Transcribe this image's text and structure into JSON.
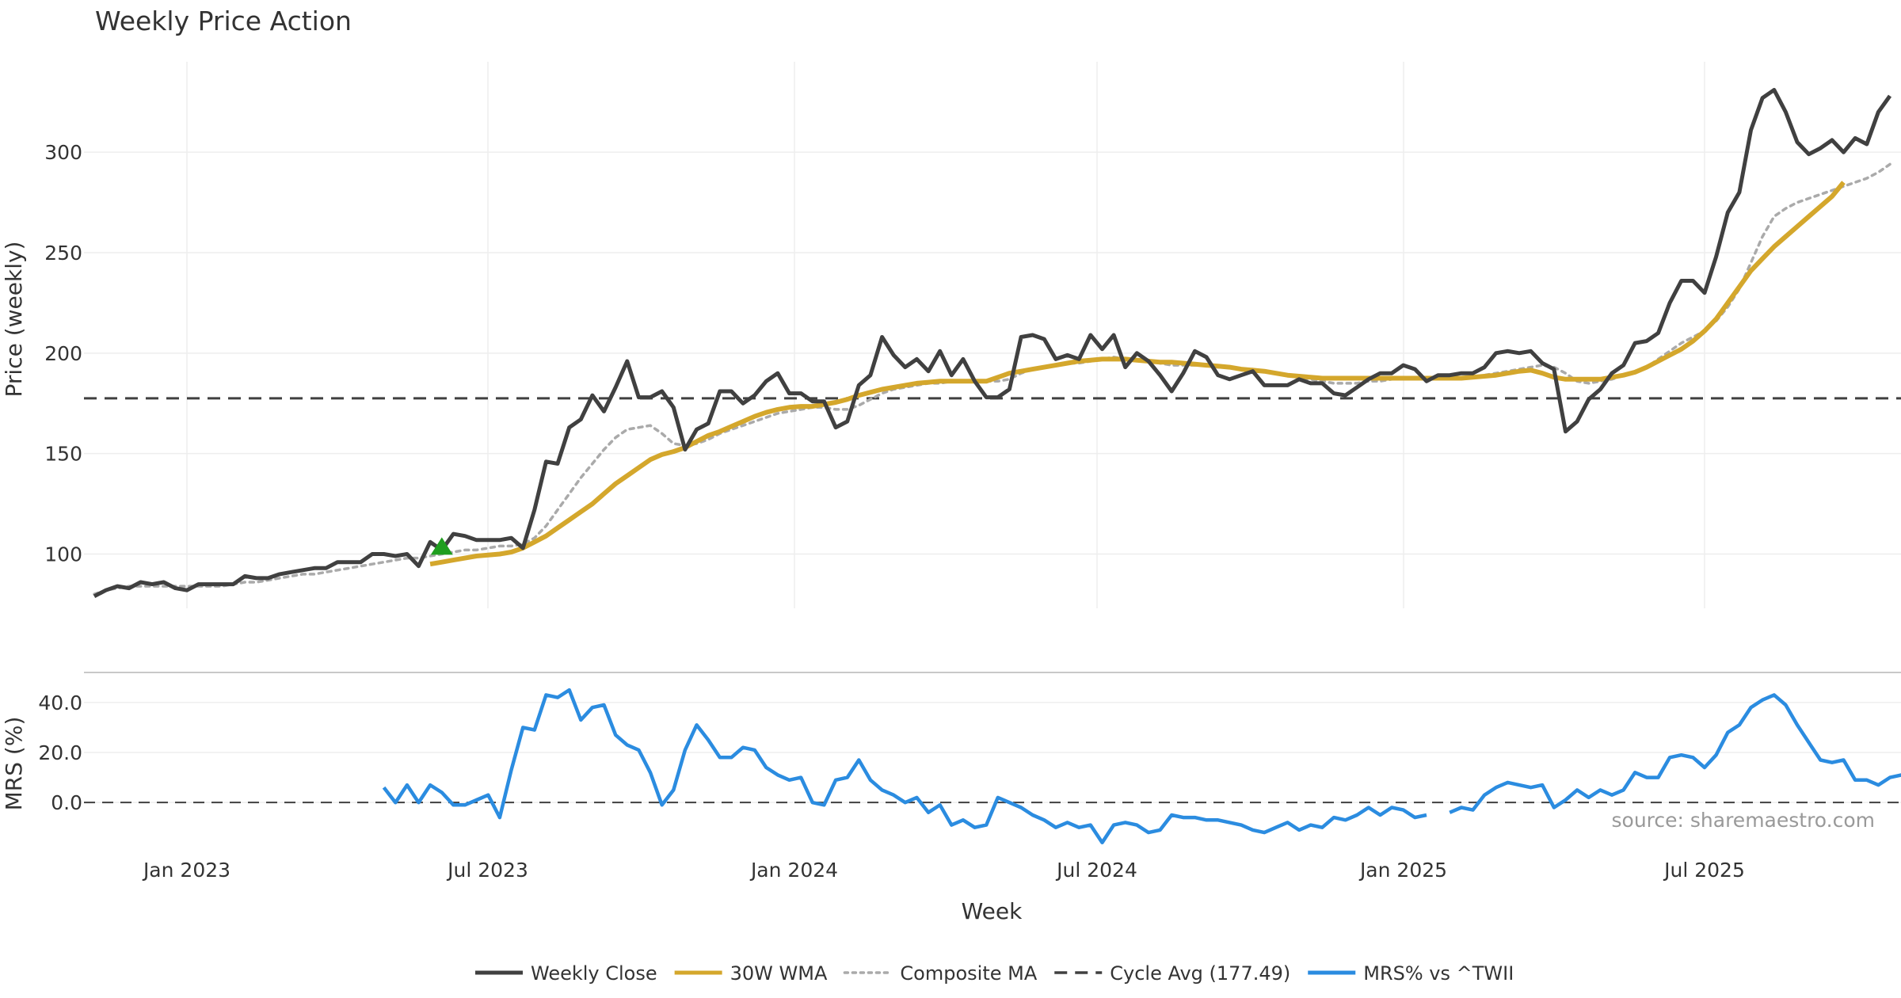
{
  "chart_data": {
    "type": "line",
    "title": "Weekly Price Action",
    "xlabel": "Week",
    "source": "source: sharemaestro.com",
    "x_ticks": [
      "Jan 2023",
      "Jul 2023",
      "Jan 2024",
      "Jul 2024",
      "Jan 2025",
      "Jul 2025"
    ],
    "grid": true,
    "legend_position": "bottom",
    "price_panel": {
      "ylabel": "Price (weekly)",
      "ylim": [
        73,
        345
      ],
      "y_ticks": [
        "100",
        "150",
        "200",
        "250",
        "300"
      ],
      "cycle_avg": 177.49,
      "buy_signal": {
        "week": "2023-06-05",
        "price": 104
      },
      "series": [
        {
          "name": "Weekly Close",
          "color": "#404040",
          "start": "2022-11-07",
          "values": [
            79,
            82,
            84,
            83,
            86,
            85,
            86,
            83,
            82,
            85,
            85,
            85,
            85,
            89,
            88,
            88,
            90,
            91,
            92,
            93,
            93,
            96,
            96,
            96,
            100,
            100,
            99,
            100,
            94,
            106,
            102,
            110,
            109,
            107,
            107,
            107,
            108,
            103,
            122,
            146,
            145,
            163,
            167,
            179,
            171,
            183,
            196,
            178,
            178,
            181,
            173,
            152,
            162,
            165,
            181,
            181,
            175,
            179,
            186,
            190,
            180,
            180,
            176,
            176,
            163,
            166,
            184,
            189,
            208,
            199,
            193,
            197,
            191,
            201,
            189,
            197,
            186,
            178,
            178,
            182,
            208,
            209,
            207,
            197,
            199,
            197,
            209,
            202,
            209,
            193,
            200,
            196,
            189,
            181,
            190,
            201,
            198,
            189,
            187,
            189,
            191,
            184,
            184,
            184,
            187,
            185,
            185,
            180,
            179,
            183,
            187,
            190,
            190,
            194,
            192,
            186,
            189,
            189,
            190,
            190,
            193,
            200,
            201,
            200,
            201,
            195,
            192,
            161,
            166,
            177,
            182,
            190,
            194,
            205,
            206,
            210,
            225,
            236,
            236,
            230,
            248,
            270,
            280,
            311,
            327,
            331,
            320,
            305,
            299,
            302,
            306,
            300,
            307,
            304,
            320,
            328
          ]
        },
        {
          "name": "30W WMA",
          "color": "#D4A72C",
          "start": "2023-05-29",
          "values": [
            95,
            96,
            97,
            98,
            99,
            99.5,
            100,
            101,
            103,
            106,
            109,
            113,
            117,
            121,
            125,
            130,
            135,
            139,
            143,
            147,
            149.5,
            151,
            153,
            156,
            159,
            161,
            163.5,
            166,
            168.5,
            170.5,
            172,
            173,
            173.5,
            173.5,
            174.5,
            175.5,
            177,
            179,
            180.5,
            182,
            183,
            184,
            185,
            185.5,
            186,
            186,
            186,
            186,
            186,
            188,
            190,
            191,
            192,
            193,
            194,
            195,
            196,
            196.5,
            197,
            197,
            197,
            196.5,
            196,
            195.5,
            195.5,
            195,
            194.5,
            194,
            193.5,
            193,
            192,
            191.5,
            191,
            190,
            189,
            188.5,
            188,
            187.5,
            187.5,
            187.5,
            187.5,
            187.5,
            187.5,
            187.5,
            187.5,
            187.5,
            187.5,
            187.5,
            187.5,
            187.5,
            188,
            188.5,
            189,
            190,
            191,
            191.5,
            190,
            188,
            187,
            187,
            187,
            187,
            188,
            189,
            190.5,
            193,
            196,
            199,
            202,
            206,
            211,
            217,
            225,
            233,
            241,
            247,
            253,
            258,
            263,
            268,
            273,
            278,
            285
          ]
        },
        {
          "name": "Composite MA",
          "color": "#AAAAAA",
          "start": "2022-11-07",
          "values": [
            80,
            82,
            83,
            84,
            84,
            84,
            84,
            84,
            84,
            84,
            84,
            84,
            85,
            86,
            86,
            87,
            88,
            89,
            90,
            90,
            91,
            92,
            93,
            94,
            95,
            96,
            97,
            98,
            98,
            99,
            100,
            101,
            102,
            102,
            103,
            104,
            104,
            105,
            108,
            114,
            122,
            130,
            138,
            145,
            152,
            158,
            162,
            163,
            164,
            160,
            155,
            154,
            155,
            157,
            160,
            162,
            164,
            166,
            168,
            170,
            171,
            172,
            173,
            173,
            172,
            172,
            174,
            177,
            180,
            182,
            183,
            184,
            185,
            185,
            186,
            186,
            186,
            186,
            186,
            187,
            190,
            192,
            193,
            194,
            195,
            195,
            196,
            197,
            198,
            197,
            197,
            196,
            195,
            194,
            194,
            194,
            194,
            193,
            193,
            192,
            192,
            191,
            190,
            189,
            188,
            187,
            186,
            185,
            185,
            185,
            186,
            186,
            187,
            188,
            188,
            188,
            188,
            188,
            188,
            188,
            189,
            190,
            191,
            192,
            193,
            194,
            193,
            190,
            186,
            185,
            186,
            187,
            189,
            191,
            193,
            197,
            201,
            205,
            208,
            211,
            216,
            223,
            232,
            245,
            258,
            268,
            272,
            275,
            277,
            279,
            281,
            283,
            285,
            287,
            290,
            294
          ]
        }
      ]
    },
    "mrs_panel": {
      "ylabel": "MRS (%)",
      "ylim": [
        -18,
        52
      ],
      "y_ticks": [
        "40.0",
        "20.0",
        "0.0"
      ],
      "series": [
        {
          "name": "MRS% vs ^TWII",
          "color": "#2B8CE0",
          "start": "2023-05-01",
          "values": [
            6,
            0,
            7,
            0,
            7,
            4,
            -1,
            -1,
            1,
            3,
            -6,
            13,
            30,
            29,
            43,
            42,
            45,
            33,
            38,
            39,
            27,
            23,
            21,
            12,
            -1,
            5,
            21,
            31,
            25,
            18,
            18,
            22,
            21,
            14,
            11,
            9,
            10,
            0,
            -1,
            9,
            10,
            17,
            9,
            5,
            3,
            0,
            2,
            -4,
            -1,
            -9,
            -7,
            -10,
            -9,
            2,
            0,
            -2,
            -5,
            -7,
            -10,
            -8,
            -10,
            -9,
            -16,
            -9,
            -8,
            -9,
            -12,
            -11,
            -5,
            -6,
            -6,
            -7,
            -7,
            -8,
            -9,
            -11,
            -12,
            -10,
            -8,
            -11,
            -9,
            -10,
            -6,
            -7,
            -5,
            -2,
            -5,
            -2,
            -3,
            -6,
            -5,
            null,
            -4,
            -2,
            -3,
            3,
            6,
            8,
            7,
            6,
            7,
            -2,
            1,
            5,
            2,
            5,
            3,
            5,
            12,
            10,
            10,
            18,
            19,
            18,
            14,
            19,
            28,
            31,
            38,
            41,
            43,
            39,
            31,
            24,
            17,
            16,
            17,
            9,
            9,
            7,
            10,
            11
          ]
        }
      ]
    },
    "legend": [
      {
        "label": "Weekly Close",
        "style": "solid",
        "color": "#404040"
      },
      {
        "label": "30W WMA",
        "style": "solid",
        "color": "#D4A72C"
      },
      {
        "label": "Composite MA",
        "style": "dotted",
        "color": "#AAAAAA"
      },
      {
        "label": "Cycle Avg (177.49)",
        "style": "dashed",
        "color": "#404040"
      },
      {
        "label": "MRS% vs ^TWII",
        "style": "solid",
        "color": "#2B8CE0"
      }
    ]
  }
}
